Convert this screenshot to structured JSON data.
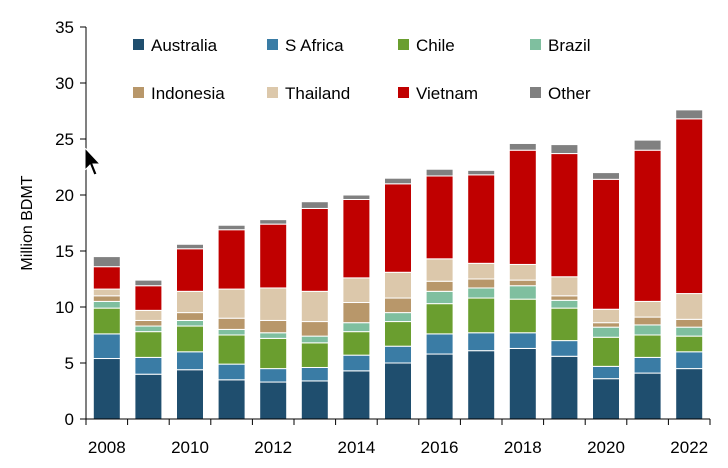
{
  "chart_data": {
    "type": "bar",
    "stacked": true,
    "ylabel": "Million BDMT",
    "ylim": [
      0,
      35
    ],
    "yticks": [
      0,
      5,
      10,
      15,
      20,
      25,
      30,
      35
    ],
    "ytick_labels": [
      "0",
      "5",
      "10",
      "15",
      "20",
      "25",
      "30",
      "35"
    ],
    "grid": false,
    "legend_position": "top",
    "categories": [
      "2008",
      "2009",
      "2010",
      "2011",
      "2012",
      "2013",
      "2014",
      "2015",
      "2016",
      "2017",
      "2018",
      "2019",
      "2020",
      "2021",
      "2022"
    ],
    "xtick_labels": [
      "2008",
      "",
      "2010",
      "",
      "2012",
      "",
      "2014",
      "",
      "2016",
      "",
      "2018",
      "",
      "2020",
      "",
      "2022"
    ],
    "series": [
      {
        "name": "Australia",
        "color": "#1f4e6e",
        "values": [
          5.4,
          4.0,
          4.4,
          3.5,
          3.3,
          3.4,
          4.3,
          5.0,
          5.8,
          6.1,
          6.3,
          5.6,
          3.6,
          4.1,
          4.5
        ]
      },
      {
        "name": "S Africa",
        "color": "#3a7ca5",
        "values": [
          2.2,
          1.5,
          1.6,
          1.4,
          1.2,
          1.2,
          1.4,
          1.5,
          1.8,
          1.6,
          1.4,
          1.4,
          1.1,
          1.4,
          1.5
        ]
      },
      {
        "name": "Chile",
        "color": "#6a9e2f",
        "values": [
          2.3,
          2.3,
          2.3,
          2.6,
          2.7,
          2.2,
          2.1,
          2.2,
          2.7,
          3.1,
          3.0,
          2.9,
          2.6,
          2.0,
          1.4
        ]
      },
      {
        "name": "Brazil",
        "color": "#7fbf9f",
        "values": [
          0.6,
          0.5,
          0.5,
          0.5,
          0.5,
          0.6,
          0.8,
          0.8,
          1.1,
          0.9,
          1.2,
          0.7,
          0.9,
          0.9,
          0.8
        ]
      },
      {
        "name": "Indonesia",
        "color": "#b8976a",
        "values": [
          0.5,
          0.5,
          0.7,
          1.0,
          1.1,
          1.3,
          1.8,
          1.3,
          0.9,
          0.8,
          0.5,
          0.4,
          0.4,
          0.7,
          0.7
        ]
      },
      {
        "name": "Thailand",
        "color": "#dcc8ab",
        "values": [
          0.6,
          0.9,
          1.9,
          2.6,
          2.9,
          2.7,
          2.2,
          2.3,
          2.0,
          1.4,
          1.4,
          1.7,
          1.2,
          1.4,
          2.3
        ]
      },
      {
        "name": "Vietnam",
        "color": "#c00000",
        "values": [
          2.0,
          2.2,
          3.8,
          5.3,
          5.7,
          7.4,
          7.0,
          7.9,
          7.4,
          7.9,
          10.2,
          11.0,
          11.6,
          13.5,
          15.6
        ]
      },
      {
        "name": "Other",
        "color": "#808080",
        "values": [
          0.9,
          0.5,
          0.4,
          0.4,
          0.4,
          0.6,
          0.4,
          0.5,
          0.6,
          0.4,
          0.6,
          0.8,
          0.6,
          0.9,
          0.8
        ]
      }
    ]
  }
}
